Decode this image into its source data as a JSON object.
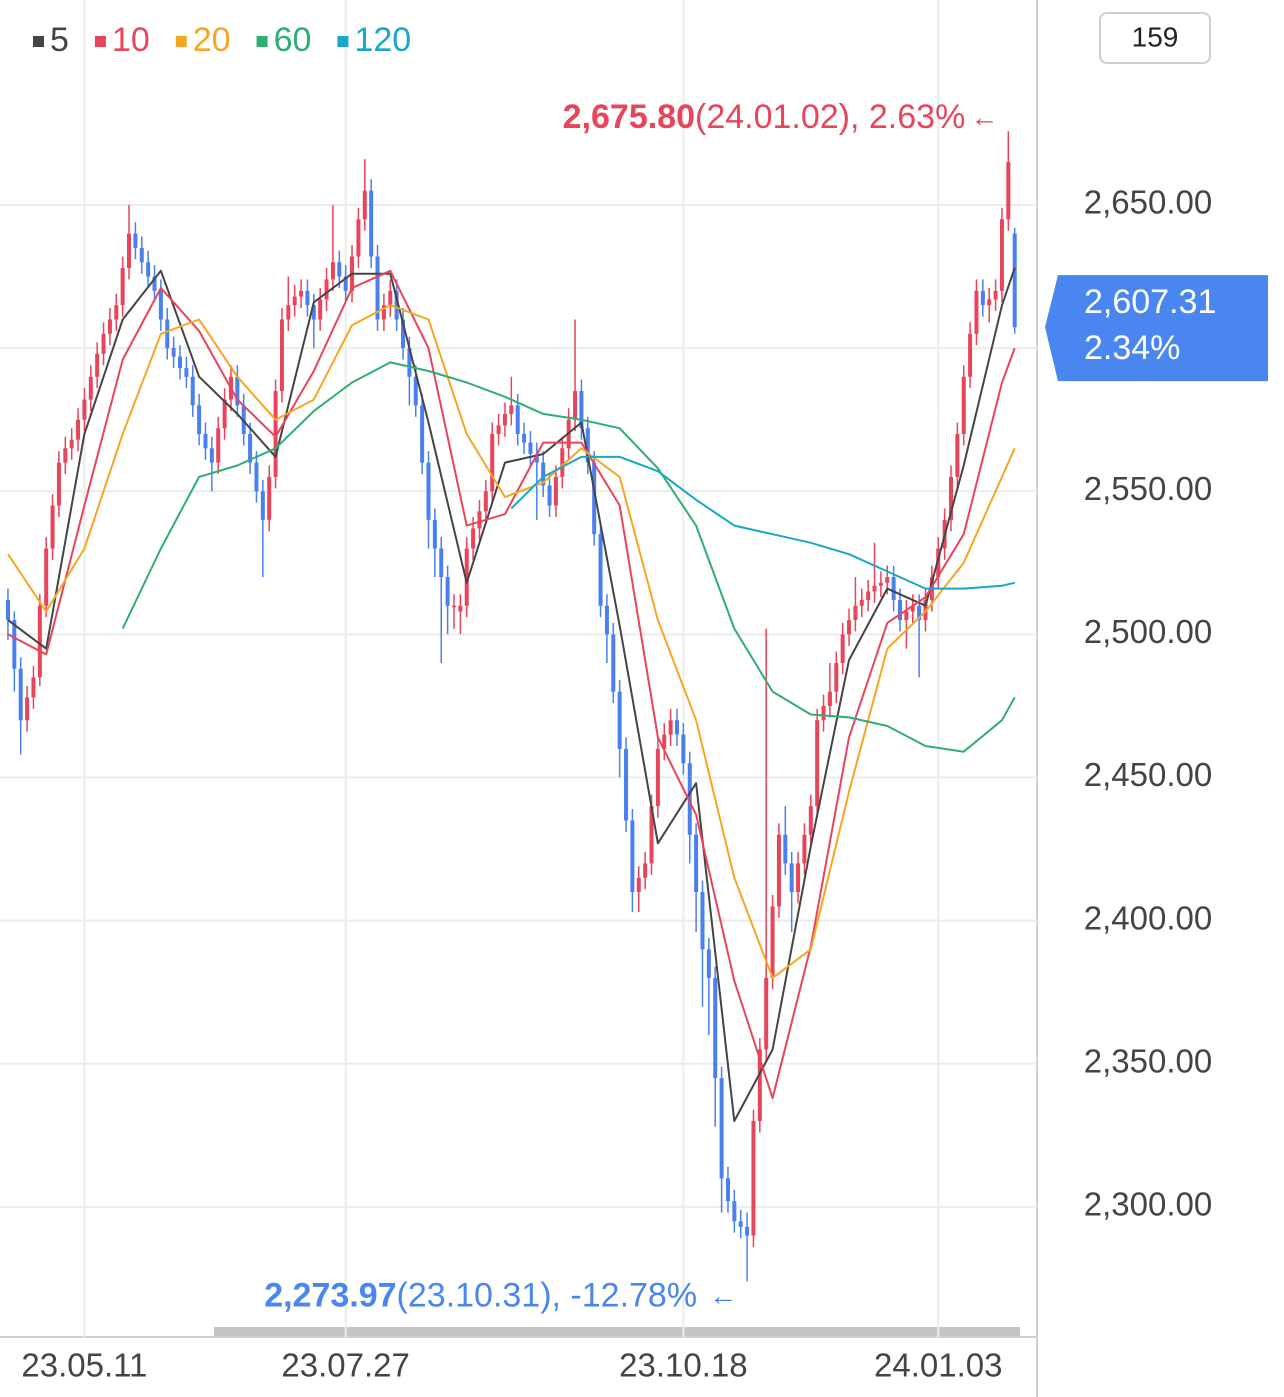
{
  "chart_data": {
    "type": "candlestick",
    "period": "159",
    "ylim": [
      2257,
      2721.6
    ],
    "xlim": [
      -1.25,
      161.5
    ],
    "ygrid": [
      2300,
      2350,
      2400,
      2450,
      2500,
      2550,
      2600,
      2650
    ],
    "yticks": [
      {
        "value": 2650,
        "label": "2,650.00"
      },
      {
        "value": 2550,
        "label": "2,550.00"
      },
      {
        "value": 2500,
        "label": "2,500.00"
      },
      {
        "value": 2450,
        "label": "2,450.00"
      },
      {
        "value": 2400,
        "label": "2,400.00"
      },
      {
        "value": 2350,
        "label": "2,350.00"
      },
      {
        "value": 2300,
        "label": "2,300.00"
      }
    ],
    "xticks": [
      {
        "value": 12,
        "label": "23.05.11"
      },
      {
        "value": 53,
        "label": "23.07.27"
      },
      {
        "value": 106,
        "label": "23.10.18"
      },
      {
        "value": 146,
        "label": "24.01.03"
      }
    ],
    "up_color": "#e8445a",
    "down_color": "#4a7ff0",
    "candles": [
      [
        2512,
        2516,
        2498,
        2505
      ],
      [
        2505,
        2508,
        2480,
        2488
      ],
      [
        2488,
        2492,
        2458,
        2470
      ],
      [
        2470,
        2482,
        2466,
        2478
      ],
      [
        2478,
        2489,
        2474,
        2485
      ],
      [
        2485,
        2514,
        2482,
        2510
      ],
      [
        2510,
        2534,
        2506,
        2530
      ],
      [
        2530,
        2549,
        2526,
        2545
      ],
      [
        2545,
        2564,
        2541,
        2560
      ],
      [
        2560,
        2569,
        2556,
        2565
      ],
      [
        2565,
        2572,
        2561,
        2568
      ],
      [
        2568,
        2579,
        2564,
        2575
      ],
      [
        2575,
        2586,
        2571,
        2582
      ],
      [
        2582,
        2594,
        2578,
        2590
      ],
      [
        2590,
        2602,
        2586,
        2598
      ],
      [
        2598,
        2609,
        2594,
        2605
      ],
      [
        2605,
        2614,
        2601,
        2610
      ],
      [
        2610,
        2619,
        2606,
        2615
      ],
      [
        2615,
        2632,
        2611,
        2628
      ],
      [
        2628,
        2650,
        2624,
        2640
      ],
      [
        2640,
        2644,
        2631,
        2635
      ],
      [
        2635,
        2639,
        2626,
        2630
      ],
      [
        2630,
        2634,
        2621,
        2625
      ],
      [
        2625,
        2629,
        2616,
        2620
      ],
      [
        2620,
        2624,
        2606,
        2610
      ],
      [
        2610,
        2614,
        2596,
        2600
      ],
      [
        2600,
        2604,
        2593,
        2597
      ],
      [
        2597,
        2601,
        2589,
        2593
      ],
      [
        2593,
        2597,
        2586,
        2590
      ],
      [
        2590,
        2594,
        2576,
        2580
      ],
      [
        2580,
        2584,
        2566,
        2570
      ],
      [
        2570,
        2574,
        2561,
        2565
      ],
      [
        2565,
        2569,
        2550,
        2560
      ],
      [
        2560,
        2576,
        2556,
        2572
      ],
      [
        2572,
        2586,
        2568,
        2582
      ],
      [
        2582,
        2594,
        2578,
        2590
      ],
      [
        2590,
        2594,
        2576,
        2580
      ],
      [
        2580,
        2584,
        2566,
        2570
      ],
      [
        2570,
        2574,
        2556,
        2560
      ],
      [
        2560,
        2564,
        2546,
        2550
      ],
      [
        2550,
        2554,
        2520,
        2540
      ],
      [
        2540,
        2559,
        2536,
        2555
      ],
      [
        2555,
        2589,
        2551,
        2585
      ],
      [
        2585,
        2614,
        2581,
        2610
      ],
      [
        2610,
        2625,
        2606,
        2615
      ],
      [
        2615,
        2622,
        2611,
        2618
      ],
      [
        2618,
        2624,
        2614,
        2620
      ],
      [
        2620,
        2624,
        2611,
        2615
      ],
      [
        2615,
        2619,
        2600,
        2610
      ],
      [
        2610,
        2621,
        2606,
        2617
      ],
      [
        2617,
        2628,
        2613,
        2624
      ],
      [
        2624,
        2650,
        2620,
        2630
      ],
      [
        2630,
        2634,
        2621,
        2625
      ],
      [
        2625,
        2629,
        2616,
        2620
      ],
      [
        2620,
        2636,
        2616,
        2632
      ],
      [
        2632,
        2649,
        2628,
        2645
      ],
      [
        2645,
        2666,
        2641,
        2655
      ],
      [
        2655,
        2659,
        2628,
        2632
      ],
      [
        2632,
        2636,
        2606,
        2610
      ],
      [
        2610,
        2619,
        2606,
        2615
      ],
      [
        2615,
        2624,
        2611,
        2620
      ],
      [
        2620,
        2624,
        2606,
        2610
      ],
      [
        2610,
        2614,
        2596,
        2600
      ],
      [
        2600,
        2604,
        2580,
        2590
      ],
      [
        2590,
        2594,
        2576,
        2580
      ],
      [
        2580,
        2584,
        2556,
        2560
      ],
      [
        2560,
        2564,
        2530,
        2540
      ],
      [
        2540,
        2544,
        2520,
        2530
      ],
      [
        2530,
        2534,
        2490,
        2520
      ],
      [
        2520,
        2524,
        2500,
        2510
      ],
      [
        2510,
        2514,
        2502,
        2510
      ],
      [
        2508,
        2514,
        2500,
        2510
      ],
      [
        2510,
        2534,
        2506,
        2530
      ],
      [
        2530,
        2541,
        2526,
        2537
      ],
      [
        2537,
        2547,
        2533,
        2543
      ],
      [
        2543,
        2554,
        2539,
        2550
      ],
      [
        2550,
        2574,
        2546,
        2570
      ],
      [
        2570,
        2577,
        2566,
        2573
      ],
      [
        2573,
        2581,
        2569,
        2577
      ],
      [
        2577,
        2590,
        2573,
        2580
      ],
      [
        2580,
        2584,
        2566,
        2570
      ],
      [
        2570,
        2574,
        2563,
        2567
      ],
      [
        2567,
        2571,
        2559,
        2563
      ],
      [
        2563,
        2567,
        2540,
        2560
      ],
      [
        2560,
        2564,
        2548,
        2552
      ],
      [
        2552,
        2556,
        2541,
        2545
      ],
      [
        2545,
        2559,
        2541,
        2555
      ],
      [
        2555,
        2569,
        2551,
        2565
      ],
      [
        2565,
        2579,
        2561,
        2575
      ],
      [
        2575,
        2610,
        2571,
        2585
      ],
      [
        2585,
        2589,
        2568,
        2572
      ],
      [
        2572,
        2576,
        2556,
        2560
      ],
      [
        2560,
        2564,
        2531,
        2535
      ],
      [
        2535,
        2539,
        2506,
        2510
      ],
      [
        2510,
        2514,
        2490,
        2500
      ],
      [
        2500,
        2504,
        2476,
        2480
      ],
      [
        2480,
        2484,
        2450,
        2460
      ],
      [
        2460,
        2464,
        2431,
        2435
      ],
      [
        2435,
        2439,
        2403,
        2410
      ],
      [
        2410,
        2419,
        2403,
        2415
      ],
      [
        2415,
        2424,
        2411,
        2420
      ],
      [
        2420,
        2444,
        2416,
        2440
      ],
      [
        2440,
        2464,
        2436,
        2460
      ],
      [
        2460,
        2469,
        2456,
        2465
      ],
      [
        2465,
        2474,
        2461,
        2470
      ],
      [
        2470,
        2474,
        2461,
        2465
      ],
      [
        2465,
        2469,
        2451,
        2455
      ],
      [
        2455,
        2459,
        2420,
        2430
      ],
      [
        2430,
        2434,
        2396,
        2410
      ],
      [
        2410,
        2414,
        2370,
        2390
      ],
      [
        2390,
        2394,
        2360,
        2380
      ],
      [
        2380,
        2384,
        2328,
        2345
      ],
      [
        2345,
        2349,
        2298,
        2310
      ],
      [
        2310,
        2314,
        2298,
        2302
      ],
      [
        2302,
        2306,
        2291,
        2295
      ],
      [
        2295,
        2299,
        2289,
        2293
      ],
      [
        2293,
        2298,
        2273.97,
        2290
      ],
      [
        2290,
        2334,
        2286,
        2330
      ],
      [
        2330,
        2359,
        2326,
        2355
      ],
      [
        2355,
        2502,
        2351,
        2380
      ],
      [
        2380,
        2409,
        2376,
        2405
      ],
      [
        2405,
        2434,
        2401,
        2430
      ],
      [
        2430,
        2440,
        2416,
        2420
      ],
      [
        2420,
        2424,
        2396,
        2410
      ],
      [
        2410,
        2424,
        2406,
        2420
      ],
      [
        2420,
        2434,
        2416,
        2430
      ],
      [
        2430,
        2444,
        2426,
        2440
      ],
      [
        2440,
        2474,
        2436,
        2470
      ],
      [
        2470,
        2479,
        2466,
        2475
      ],
      [
        2475,
        2490,
        2471,
        2480
      ],
      [
        2480,
        2494,
        2476,
        2490
      ],
      [
        2490,
        2504,
        2486,
        2500
      ],
      [
        2500,
        2509,
        2496,
        2505
      ],
      [
        2505,
        2520,
        2501,
        2510
      ],
      [
        2510,
        2516,
        2506,
        2512
      ],
      [
        2512,
        2519,
        2508,
        2515
      ],
      [
        2515,
        2532,
        2511,
        2517
      ],
      [
        2517,
        2522,
        2513,
        2518
      ],
      [
        2518,
        2524,
        2514,
        2520
      ],
      [
        2520,
        2524,
        2508,
        2512
      ],
      [
        2512,
        2516,
        2501,
        2505
      ],
      [
        2505,
        2512,
        2495,
        2508
      ],
      [
        2508,
        2514,
        2504,
        2510
      ],
      [
        2510,
        2514,
        2485,
        2505
      ],
      [
        2505,
        2516,
        2501,
        2512
      ],
      [
        2512,
        2524,
        2508,
        2520
      ],
      [
        2520,
        2534,
        2516,
        2530
      ],
      [
        2530,
        2544,
        2526,
        2540
      ],
      [
        2540,
        2559,
        2536,
        2555
      ],
      [
        2555,
        2574,
        2551,
        2570
      ],
      [
        2570,
        2594,
        2566,
        2590
      ],
      [
        2590,
        2609,
        2586,
        2605
      ],
      [
        2605,
        2624,
        2601,
        2620
      ],
      [
        2620,
        2624,
        2611,
        2615
      ],
      [
        2615,
        2621,
        2609,
        2617
      ],
      [
        2617,
        2624,
        2613,
        2620
      ],
      [
        2620,
        2649,
        2616,
        2645
      ],
      [
        2645,
        2675.8,
        2641,
        2665
      ],
      [
        2640,
        2642,
        2605,
        2607.31
      ]
    ],
    "series": [
      {
        "name": "5",
        "color": "#444444",
        "x": [
          0,
          6,
          12,
          18,
          24,
          30,
          36,
          42,
          48,
          54,
          60,
          66,
          72,
          78,
          84,
          90,
          96,
          102,
          108,
          114,
          120,
          126,
          132,
          138,
          144,
          150,
          156,
          158
        ],
        "values": [
          2505,
          2495,
          2570,
          2610,
          2627,
          2590,
          2577,
          2562,
          2616,
          2626,
          2626,
          2574,
          2518,
          2560,
          2563,
          2574,
          2503,
          2427,
          2448,
          2330,
          2355,
          2426,
          2491,
          2516,
          2510,
          2559,
          2615,
          2628
        ]
      },
      {
        "name": "10",
        "color": "#e8445a",
        "x": [
          0,
          6,
          12,
          18,
          24,
          30,
          36,
          42,
          48,
          54,
          60,
          66,
          72,
          78,
          84,
          90,
          96,
          102,
          108,
          114,
          120,
          126,
          132,
          138,
          144,
          150,
          156,
          158
        ],
        "values": [
          2500,
          2493,
          2545,
          2596,
          2621,
          2606,
          2582,
          2569,
          2592,
          2621,
          2627,
          2600,
          2538,
          2542,
          2567,
          2567,
          2545,
          2464,
          2437,
          2379,
          2338,
          2391,
          2464,
          2504,
          2513,
          2535,
          2588,
          2600
        ]
      },
      {
        "name": "20",
        "color": "#f5a623",
        "x": [
          0,
          6,
          12,
          18,
          24,
          30,
          36,
          42,
          48,
          54,
          60,
          66,
          72,
          78,
          84,
          90,
          96,
          102,
          108,
          114,
          120,
          126,
          132,
          138,
          144,
          150,
          156,
          158
        ],
        "values": [
          2528,
          2508,
          2530,
          2570,
          2605,
          2610,
          2590,
          2575,
          2582,
          2608,
          2615,
          2610,
          2570,
          2548,
          2553,
          2565,
          2555,
          2505,
          2470,
          2415,
          2380,
          2390,
          2445,
          2495,
          2508,
          2525,
          2555,
          2565
        ]
      },
      {
        "name": "60",
        "color": "#2fae72",
        "x": [
          18,
          24,
          30,
          36,
          42,
          48,
          54,
          60,
          66,
          72,
          78,
          84,
          90,
          96,
          102,
          108,
          114,
          120,
          126,
          132,
          138,
          144,
          150,
          156,
          158
        ],
        "values": [
          2502,
          2530,
          2555,
          2559,
          2565,
          2578,
          2588,
          2595,
          2592,
          2588,
          2583,
          2577,
          2575,
          2572,
          2558,
          2538,
          2502,
          2480,
          2472,
          2471,
          2468,
          2461,
          2459,
          2470,
          2478
        ]
      },
      {
        "name": "120",
        "color": "#1aa6c8",
        "x": [
          79,
          84,
          90,
          96,
          102,
          108,
          114,
          120,
          126,
          132,
          138,
          144,
          150,
          156,
          158
        ],
        "values": [
          2544,
          2555,
          2562,
          2562,
          2557,
          2547,
          2538,
          2535,
          2532,
          2528,
          2522,
          2516,
          2516,
          2517,
          2518
        ]
      }
    ],
    "max_marker": {
      "value": 2675.8,
      "label": "2,675.80",
      "detail": "(24.01.02), 2.63%",
      "arrow": "←",
      "color": "#e8445a"
    },
    "min_marker": {
      "value": 2273.97,
      "label": "2,273.97",
      "detail": "(23.10.31), -12.78%",
      "arrow": "←",
      "color": "#4a86f0"
    },
    "current": {
      "value": 2607.31,
      "label": "2,607.31",
      "change": "2.34%",
      "color": "#4a86f0"
    }
  }
}
